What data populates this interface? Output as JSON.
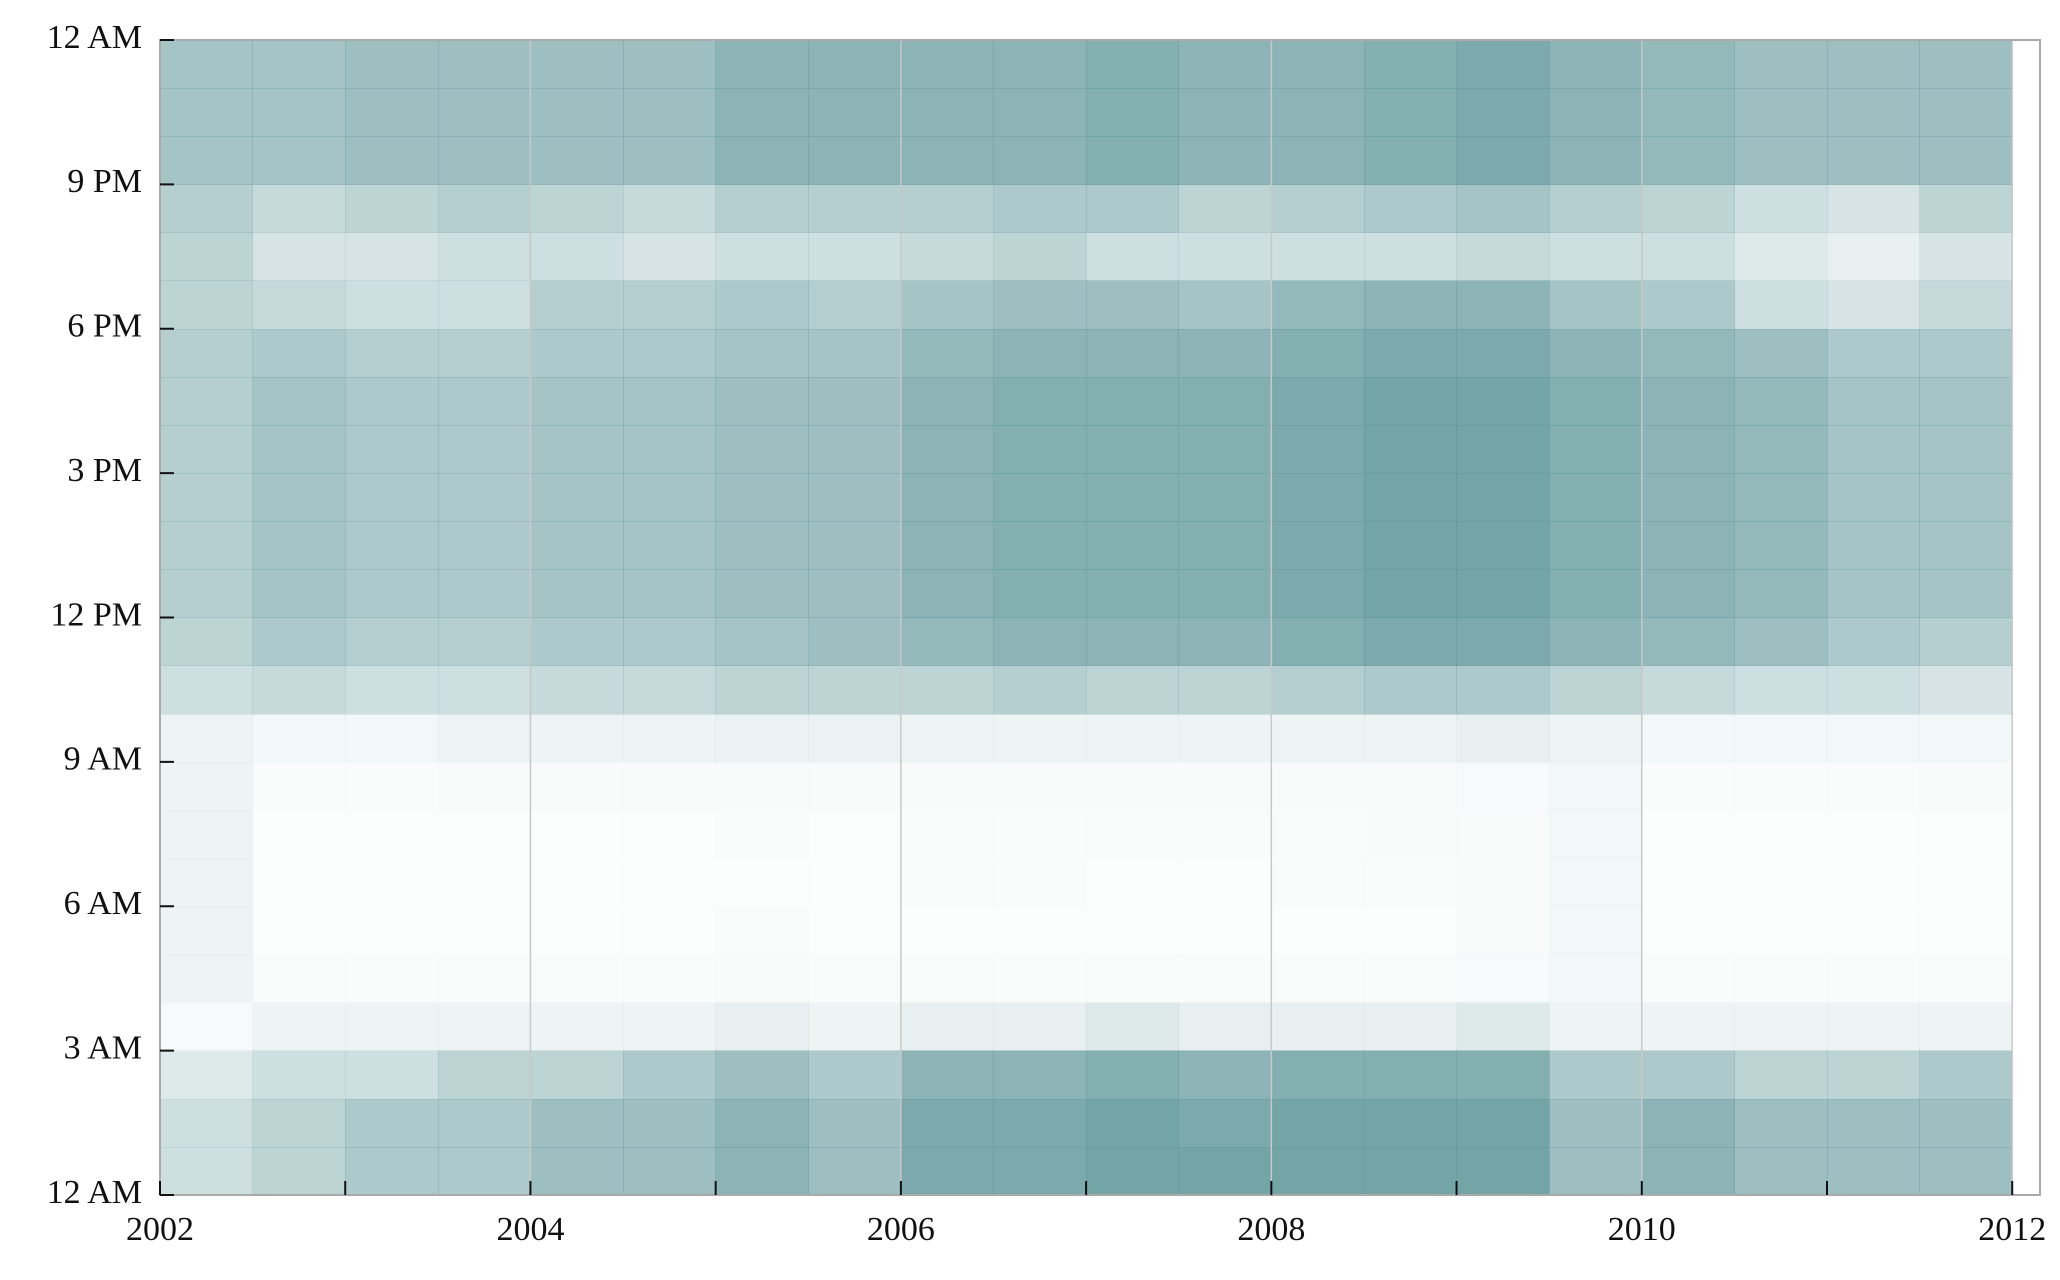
{
  "chart_data": {
    "type": "heatmap",
    "color": "#5b9497",
    "xlim": [
      2002,
      2012.15
    ],
    "ylim": [
      0,
      24
    ],
    "xticks": [
      2002,
      2004,
      2006,
      2008,
      2010,
      2012
    ],
    "xminorticks": [
      2003,
      2005,
      2007,
      2009,
      2011
    ],
    "yticks": [
      {
        "value": 0,
        "label": "12 AM"
      },
      {
        "value": 3,
        "label": "3 AM"
      },
      {
        "value": 6,
        "label": "6 AM"
      },
      {
        "value": 9,
        "label": "9 AM"
      },
      {
        "value": 12,
        "label": "12 PM"
      },
      {
        "value": 15,
        "label": "3 PM"
      },
      {
        "value": 18,
        "label": "6 PM"
      },
      {
        "value": 21,
        "label": "9 PM"
      },
      {
        "value": 24,
        "label": "12 AM"
      }
    ],
    "grid": "x",
    "xbins": [
      2002,
      2002.5,
      2003,
      2003.5,
      2004,
      2004.5,
      2005,
      2005.5,
      2006,
      2006.5,
      2007,
      2007.5,
      2008,
      2008.5,
      2009,
      2009.5,
      2010,
      2010.5,
      2011,
      2011.5,
      2012
    ],
    "ybins": [
      0,
      1,
      2,
      3,
      4,
      5,
      6,
      7,
      8,
      9,
      10,
      11,
      12,
      13,
      14,
      15,
      16,
      17,
      18,
      19,
      20,
      21,
      22,
      23,
      24
    ],
    "values": [
      [
        0.3,
        0.4,
        0.5,
        0.5,
        0.6,
        0.6,
        0.7,
        0.6,
        0.8,
        0.8,
        0.85,
        0.85,
        0.85,
        0.85,
        0.85,
        0.6,
        0.7,
        0.6,
        0.6,
        0.6
      ],
      [
        0.3,
        0.4,
        0.5,
        0.5,
        0.6,
        0.6,
        0.7,
        0.6,
        0.8,
        0.8,
        0.85,
        0.8,
        0.85,
        0.85,
        0.85,
        0.6,
        0.7,
        0.6,
        0.6,
        0.6
      ],
      [
        0.2,
        0.3,
        0.3,
        0.4,
        0.4,
        0.5,
        0.6,
        0.5,
        0.7,
        0.7,
        0.75,
        0.7,
        0.75,
        0.75,
        0.75,
        0.5,
        0.5,
        0.4,
        0.4,
        0.5
      ],
      [
        0.05,
        0.1,
        0.1,
        0.1,
        0.1,
        0.1,
        0.15,
        0.1,
        0.15,
        0.15,
        0.2,
        0.15,
        0.15,
        0.15,
        0.2,
        0.1,
        0.1,
        0.1,
        0.1,
        0.1
      ],
      [
        0.1,
        0.03,
        0.03,
        0.03,
        0.03,
        0.03,
        0.04,
        0.03,
        0.03,
        0.03,
        0.03,
        0.03,
        0.03,
        0.03,
        0.05,
        0.08,
        0.03,
        0.03,
        0.03,
        0.03
      ],
      [
        0.1,
        0.02,
        0.02,
        0.02,
        0.02,
        0.02,
        0.03,
        0.02,
        0.02,
        0.02,
        0.02,
        0.02,
        0.02,
        0.02,
        0.04,
        0.08,
        0.02,
        0.02,
        0.02,
        0.02
      ],
      [
        0.1,
        0.02,
        0.02,
        0.02,
        0.02,
        0.02,
        0.02,
        0.02,
        0.03,
        0.03,
        0.02,
        0.02,
        0.03,
        0.03,
        0.04,
        0.08,
        0.02,
        0.02,
        0.02,
        0.02
      ],
      [
        0.1,
        0.02,
        0.02,
        0.02,
        0.02,
        0.02,
        0.03,
        0.02,
        0.03,
        0.03,
        0.03,
        0.03,
        0.03,
        0.04,
        0.04,
        0.08,
        0.02,
        0.02,
        0.02,
        0.02
      ],
      [
        0.1,
        0.03,
        0.03,
        0.04,
        0.04,
        0.04,
        0.04,
        0.04,
        0.04,
        0.04,
        0.04,
        0.04,
        0.04,
        0.04,
        0.05,
        0.08,
        0.03,
        0.03,
        0.03,
        0.04
      ],
      [
        0.1,
        0.08,
        0.08,
        0.1,
        0.1,
        0.1,
        0.12,
        0.12,
        0.1,
        0.1,
        0.1,
        0.1,
        0.1,
        0.1,
        0.15,
        0.1,
        0.08,
        0.08,
        0.08,
        0.08
      ],
      [
        0.3,
        0.35,
        0.3,
        0.3,
        0.35,
        0.35,
        0.4,
        0.4,
        0.4,
        0.45,
        0.4,
        0.4,
        0.45,
        0.5,
        0.5,
        0.4,
        0.35,
        0.3,
        0.3,
        0.25
      ],
      [
        0.4,
        0.5,
        0.45,
        0.45,
        0.5,
        0.5,
        0.55,
        0.6,
        0.65,
        0.7,
        0.7,
        0.7,
        0.75,
        0.8,
        0.8,
        0.7,
        0.65,
        0.6,
        0.5,
        0.45
      ],
      [
        0.45,
        0.55,
        0.5,
        0.5,
        0.55,
        0.55,
        0.6,
        0.6,
        0.7,
        0.75,
        0.75,
        0.75,
        0.8,
        0.85,
        0.85,
        0.75,
        0.7,
        0.65,
        0.55,
        0.55
      ],
      [
        0.45,
        0.55,
        0.5,
        0.5,
        0.55,
        0.55,
        0.6,
        0.6,
        0.7,
        0.75,
        0.75,
        0.75,
        0.8,
        0.85,
        0.85,
        0.75,
        0.7,
        0.65,
        0.55,
        0.55
      ],
      [
        0.45,
        0.55,
        0.5,
        0.5,
        0.55,
        0.55,
        0.6,
        0.6,
        0.7,
        0.75,
        0.75,
        0.75,
        0.8,
        0.85,
        0.85,
        0.75,
        0.7,
        0.65,
        0.55,
        0.55
      ],
      [
        0.45,
        0.55,
        0.5,
        0.5,
        0.55,
        0.55,
        0.6,
        0.6,
        0.7,
        0.75,
        0.75,
        0.75,
        0.8,
        0.85,
        0.85,
        0.75,
        0.7,
        0.65,
        0.55,
        0.55
      ],
      [
        0.45,
        0.55,
        0.5,
        0.5,
        0.55,
        0.55,
        0.6,
        0.6,
        0.7,
        0.75,
        0.75,
        0.75,
        0.8,
        0.85,
        0.85,
        0.75,
        0.7,
        0.65,
        0.55,
        0.55
      ],
      [
        0.45,
        0.5,
        0.45,
        0.45,
        0.5,
        0.5,
        0.55,
        0.55,
        0.65,
        0.7,
        0.7,
        0.7,
        0.75,
        0.8,
        0.8,
        0.7,
        0.65,
        0.6,
        0.5,
        0.5
      ],
      [
        0.4,
        0.35,
        0.3,
        0.3,
        0.45,
        0.45,
        0.5,
        0.45,
        0.55,
        0.6,
        0.6,
        0.55,
        0.65,
        0.7,
        0.7,
        0.55,
        0.5,
        0.3,
        0.25,
        0.35
      ],
      [
        0.4,
        0.25,
        0.25,
        0.3,
        0.3,
        0.25,
        0.3,
        0.3,
        0.35,
        0.4,
        0.3,
        0.3,
        0.3,
        0.3,
        0.35,
        0.3,
        0.3,
        0.2,
        0.15,
        0.25
      ],
      [
        0.45,
        0.35,
        0.4,
        0.45,
        0.4,
        0.35,
        0.45,
        0.45,
        0.45,
        0.5,
        0.5,
        0.4,
        0.45,
        0.5,
        0.55,
        0.45,
        0.4,
        0.3,
        0.25,
        0.4
      ],
      [
        0.55,
        0.55,
        0.6,
        0.6,
        0.6,
        0.6,
        0.7,
        0.7,
        0.7,
        0.7,
        0.75,
        0.7,
        0.7,
        0.75,
        0.8,
        0.7,
        0.65,
        0.6,
        0.6,
        0.6
      ],
      [
        0.55,
        0.55,
        0.6,
        0.6,
        0.6,
        0.6,
        0.7,
        0.7,
        0.7,
        0.7,
        0.75,
        0.7,
        0.7,
        0.75,
        0.8,
        0.7,
        0.65,
        0.6,
        0.6,
        0.6
      ],
      [
        0.55,
        0.55,
        0.6,
        0.6,
        0.6,
        0.6,
        0.7,
        0.7,
        0.7,
        0.7,
        0.75,
        0.7,
        0.7,
        0.75,
        0.8,
        0.7,
        0.65,
        0.6,
        0.6,
        0.6
      ]
    ]
  }
}
